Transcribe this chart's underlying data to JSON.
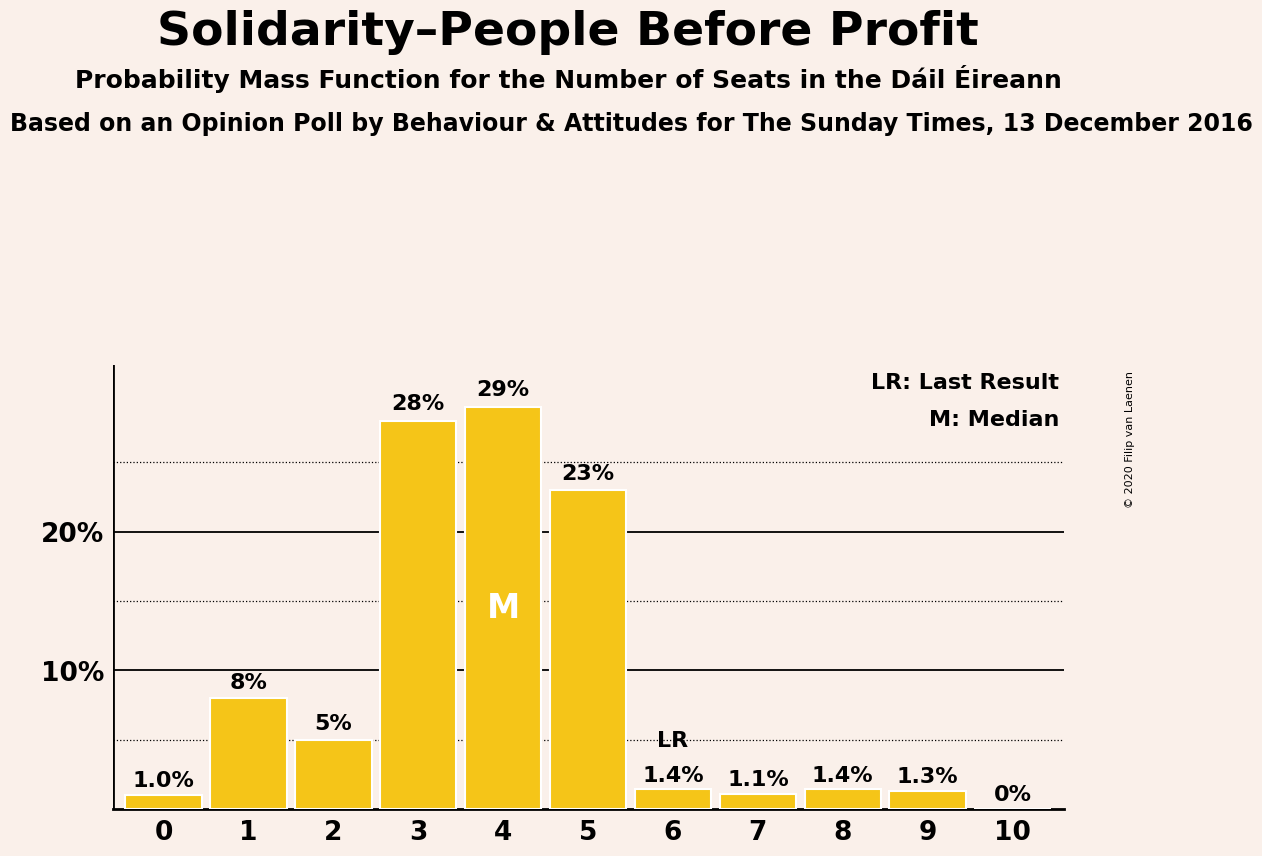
{
  "title": "Solidarity–People Before Profit",
  "subtitle": "Probability Mass Function for the Number of Seats in the Dáil Éireann",
  "footnote": "Based on an Opinion Poll by Behaviour & Attitudes for The Sunday Times, 13 December 2016",
  "copyright": "© 2020 Filip van Laenen",
  "categories": [
    0,
    1,
    2,
    3,
    4,
    5,
    6,
    7,
    8,
    9,
    10
  ],
  "values": [
    1.0,
    8.0,
    5.0,
    28.0,
    29.0,
    23.0,
    1.4,
    1.1,
    1.4,
    1.3,
    0.0
  ],
  "bar_color": "#F5C518",
  "bar_edge_color": "#ffffff",
  "background_color": "#FAF0EA",
  "median_seat": 4,
  "last_result_seat": 6,
  "legend_text": [
    "LR: Last Result",
    "M: Median"
  ],
  "median_label": "M",
  "lr_label": "LR",
  "dotted_gridlines": [
    5,
    15,
    25
  ],
  "solid_gridlines": [
    10,
    20
  ],
  "ylim": [
    0,
    32
  ],
  "bar_label_fontsize": 16,
  "title_fontsize": 34,
  "subtitle_fontsize": 18,
  "footnote_fontsize": 17
}
